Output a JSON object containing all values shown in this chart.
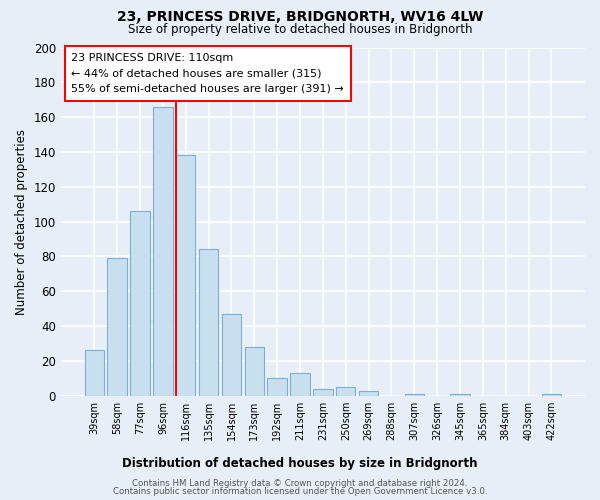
{
  "title": "23, PRINCESS DRIVE, BRIDGNORTH, WV16 4LW",
  "subtitle": "Size of property relative to detached houses in Bridgnorth",
  "xlabel": "Distribution of detached houses by size in Bridgnorth",
  "ylabel": "Number of detached properties",
  "bar_labels": [
    "39sqm",
    "58sqm",
    "77sqm",
    "96sqm",
    "116sqm",
    "135sqm",
    "154sqm",
    "173sqm",
    "192sqm",
    "211sqm",
    "231sqm",
    "250sqm",
    "269sqm",
    "288sqm",
    "307sqm",
    "326sqm",
    "345sqm",
    "365sqm",
    "384sqm",
    "403sqm",
    "422sqm"
  ],
  "bar_values": [
    26,
    79,
    106,
    166,
    138,
    84,
    47,
    28,
    10,
    13,
    4,
    5,
    3,
    0,
    1,
    0,
    1,
    0,
    0,
    0,
    1
  ],
  "bar_color": "#c8dff0",
  "bar_edge_color": "#7bafd4",
  "vline_color": "red",
  "ylim": [
    0,
    200
  ],
  "yticks": [
    0,
    20,
    40,
    60,
    80,
    100,
    120,
    140,
    160,
    180,
    200
  ],
  "annotation_title": "23 PRINCESS DRIVE: 110sqm",
  "annotation_line1": "← 44% of detached houses are smaller (315)",
  "annotation_line2": "55% of semi-detached houses are larger (391) →",
  "annotation_box_color": "#ffffff",
  "annotation_box_edge_color": "red",
  "footer_line1": "Contains HM Land Registry data © Crown copyright and database right 2024.",
  "footer_line2": "Contains public sector information licensed under the Open Government Licence v3.0.",
  "bg_color": "#e8eef8",
  "plot_bg_color": "#e8eef8",
  "figsize": [
    6.0,
    5.0
  ],
  "dpi": 100
}
